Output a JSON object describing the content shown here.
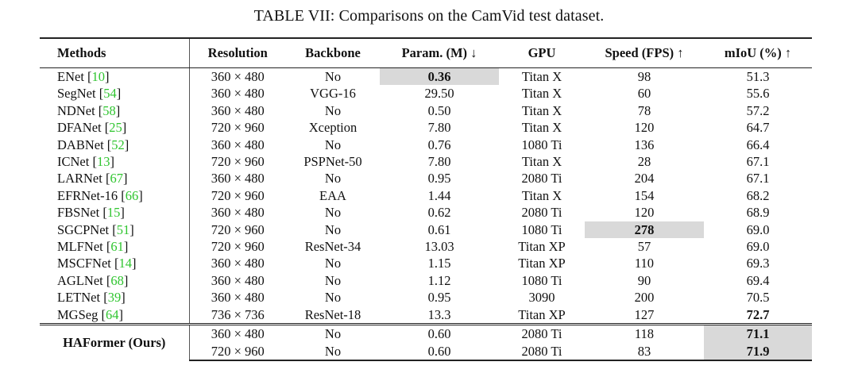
{
  "caption": "TABLE VII: Comparisons on the CamVid test dataset.",
  "headers": {
    "methods": "Methods",
    "resolution": "Resolution",
    "backbone": "Backbone",
    "param": "Param. (M) ↓",
    "gpu": "GPU",
    "speed": "Speed (FPS) ↑",
    "miou": "mIoU (%) ↑"
  },
  "rows": [
    {
      "name": "ENet",
      "ref": "10",
      "resolution": "360 × 480",
      "backbone": "No",
      "param": "0.36",
      "gpu": "Titan X",
      "speed": "98",
      "miou": "51.3"
    },
    {
      "name": "SegNet",
      "ref": "54",
      "resolution": "360 × 480",
      "backbone": "VGG-16",
      "param": "29.50",
      "gpu": "Titan X",
      "speed": "60",
      "miou": "55.6"
    },
    {
      "name": "NDNet",
      "ref": "58",
      "resolution": "360 × 480",
      "backbone": "No",
      "param": "0.50",
      "gpu": "Titan X",
      "speed": "78",
      "miou": "57.2"
    },
    {
      "name": "DFANet",
      "ref": "25",
      "resolution": "720 × 960",
      "backbone": "Xception",
      "param": "7.80",
      "gpu": "Titan X",
      "speed": "120",
      "miou": "64.7"
    },
    {
      "name": "DABNet",
      "ref": "52",
      "resolution": "360 × 480",
      "backbone": "No",
      "param": "0.76",
      "gpu": "1080 Ti",
      "speed": "136",
      "miou": "66.4"
    },
    {
      "name": "ICNet",
      "ref": "13",
      "resolution": "720 × 960",
      "backbone": "PSPNet-50",
      "param": "7.80",
      "gpu": "Titan X",
      "speed": "28",
      "miou": "67.1"
    },
    {
      "name": "LARNet",
      "ref": "67",
      "resolution": "360 × 480",
      "backbone": "No",
      "param": "0.95",
      "gpu": "2080 Ti",
      "speed": "204",
      "miou": "67.1"
    },
    {
      "name": "EFRNet-16",
      "ref": "66",
      "resolution": "720 × 960",
      "backbone": "EAA",
      "param": "1.44",
      "gpu": "Titan X",
      "speed": "154",
      "miou": "68.2"
    },
    {
      "name": "FBSNet",
      "ref": "15",
      "resolution": "360 × 480",
      "backbone": "No",
      "param": "0.62",
      "gpu": "2080 Ti",
      "speed": "120",
      "miou": "68.9"
    },
    {
      "name": "SGCPNet",
      "ref": "51",
      "resolution": "720 × 960",
      "backbone": "No",
      "param": "0.61",
      "gpu": "1080 Ti",
      "speed": "278",
      "miou": "69.0"
    },
    {
      "name": "MLFNet",
      "ref": "61",
      "resolution": "720 × 960",
      "backbone": "ResNet-34",
      "param": "13.03",
      "gpu": "Titan XP",
      "speed": "57",
      "miou": "69.0"
    },
    {
      "name": "MSCFNet",
      "ref": "14",
      "resolution": "360 × 480",
      "backbone": "No",
      "param": "1.15",
      "gpu": "Titan XP",
      "speed": "110",
      "miou": "69.3"
    },
    {
      "name": "AGLNet",
      "ref": "68",
      "resolution": "360 × 480",
      "backbone": "No",
      "param": "1.12",
      "gpu": "1080 Ti",
      "speed": "90",
      "miou": "69.4"
    },
    {
      "name": "LETNet",
      "ref": "39",
      "resolution": "360 × 480",
      "backbone": "No",
      "param": "0.95",
      "gpu": "3090",
      "speed": "200",
      "miou": "70.5"
    },
    {
      "name": "MGSeg",
      "ref": "64",
      "resolution": "736 × 736",
      "backbone": "ResNet-18",
      "param": "13.3",
      "gpu": "Titan XP",
      "speed": "127",
      "miou": "72.7"
    }
  ],
  "ours": {
    "name": "HAFormer (Ours)",
    "rows": [
      {
        "resolution": "360 × 480",
        "backbone": "No",
        "param": "0.60",
        "gpu": "2080 Ti",
        "speed": "118",
        "miou": "71.1"
      },
      {
        "resolution": "720 × 960",
        "backbone": "No",
        "param": "0.60",
        "gpu": "2080 Ti",
        "speed": "83",
        "miou": "71.9"
      }
    ]
  }
}
